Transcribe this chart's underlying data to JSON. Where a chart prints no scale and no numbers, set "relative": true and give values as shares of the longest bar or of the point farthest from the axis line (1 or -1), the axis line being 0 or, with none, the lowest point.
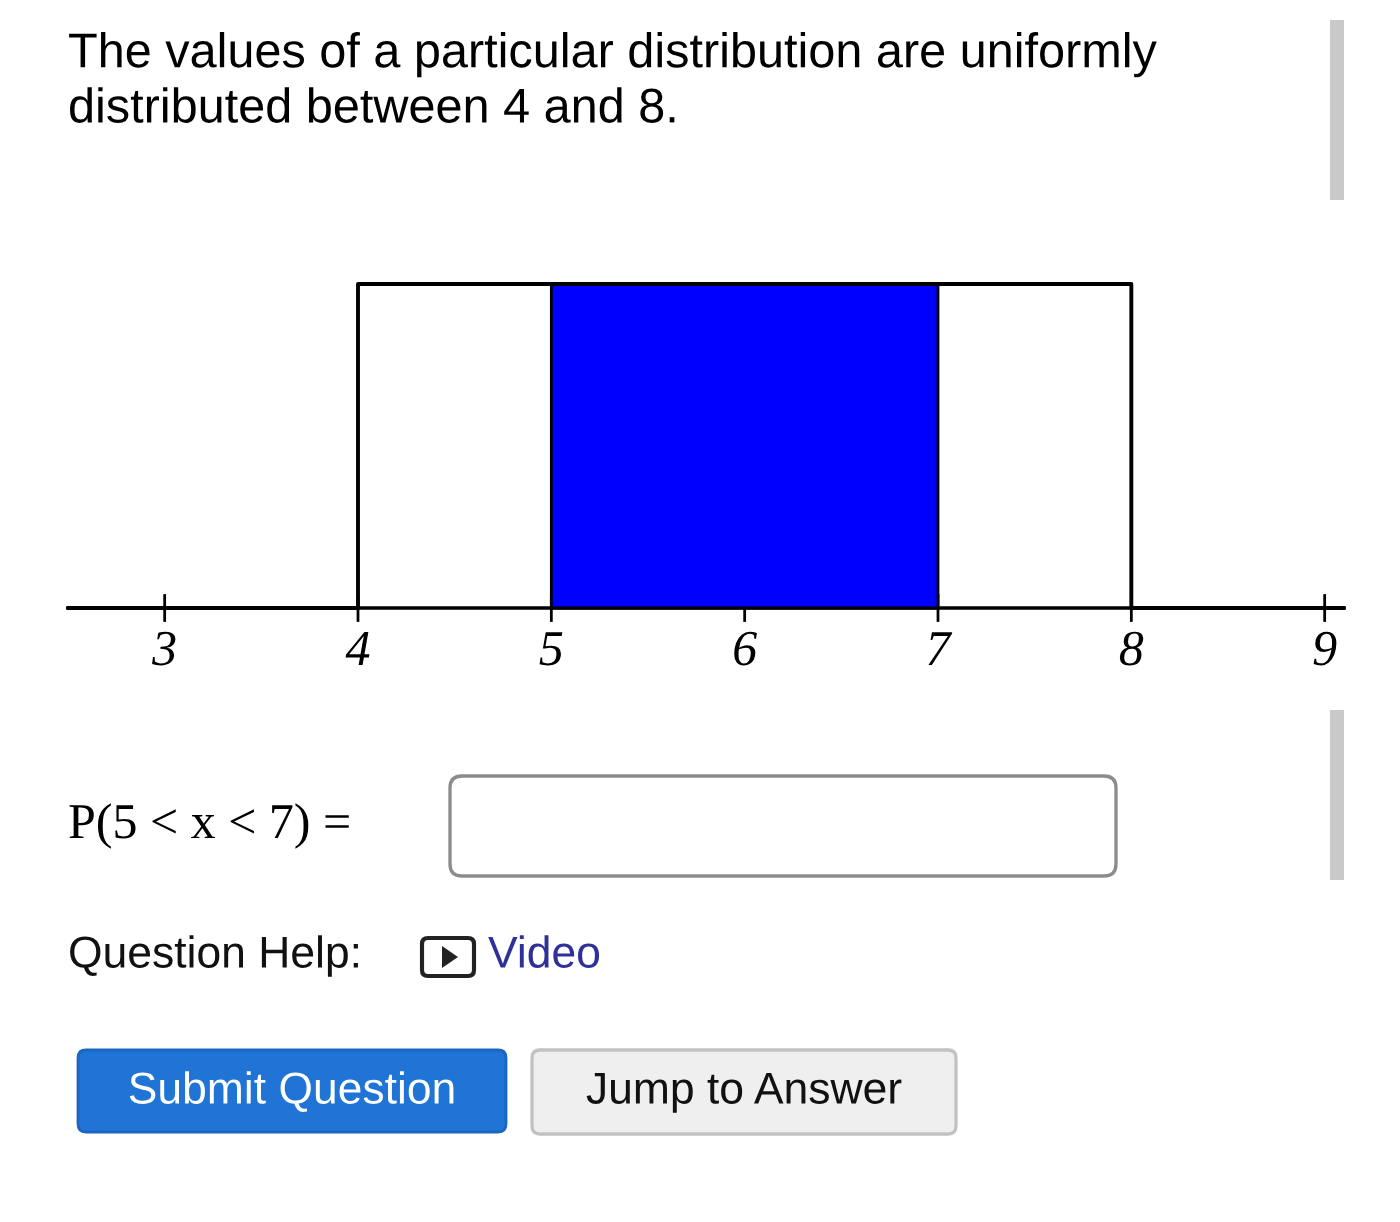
{
  "chart_data": {
    "type": "step",
    "title": "The values of a particular distribution are uniformly\ndistributed between 4 and 8.",
    "relative": true,
    "series": [
      {
        "type": "area",
        "color": "#0000ff",
        "x": [
          5,
          7
        ],
        "values": [
          1,
          1
        ]
      },
      {
        "color": "#000000",
        "x": [
          2.5,
          4,
          8,
          9.1
        ],
        "values": [
          0,
          1,
          0,
          0
        ]
      }
    ],
    "xlim": [
      2.5,
      9.1
    ],
    "xticks": [
      3,
      4,
      5,
      6,
      7,
      8,
      9
    ],
    "annotations": [
      "P(5 < x < 7) =",
      "Question Help:",
      "Video",
      "Submit Question",
      "Jump to Answer"
    ]
  }
}
